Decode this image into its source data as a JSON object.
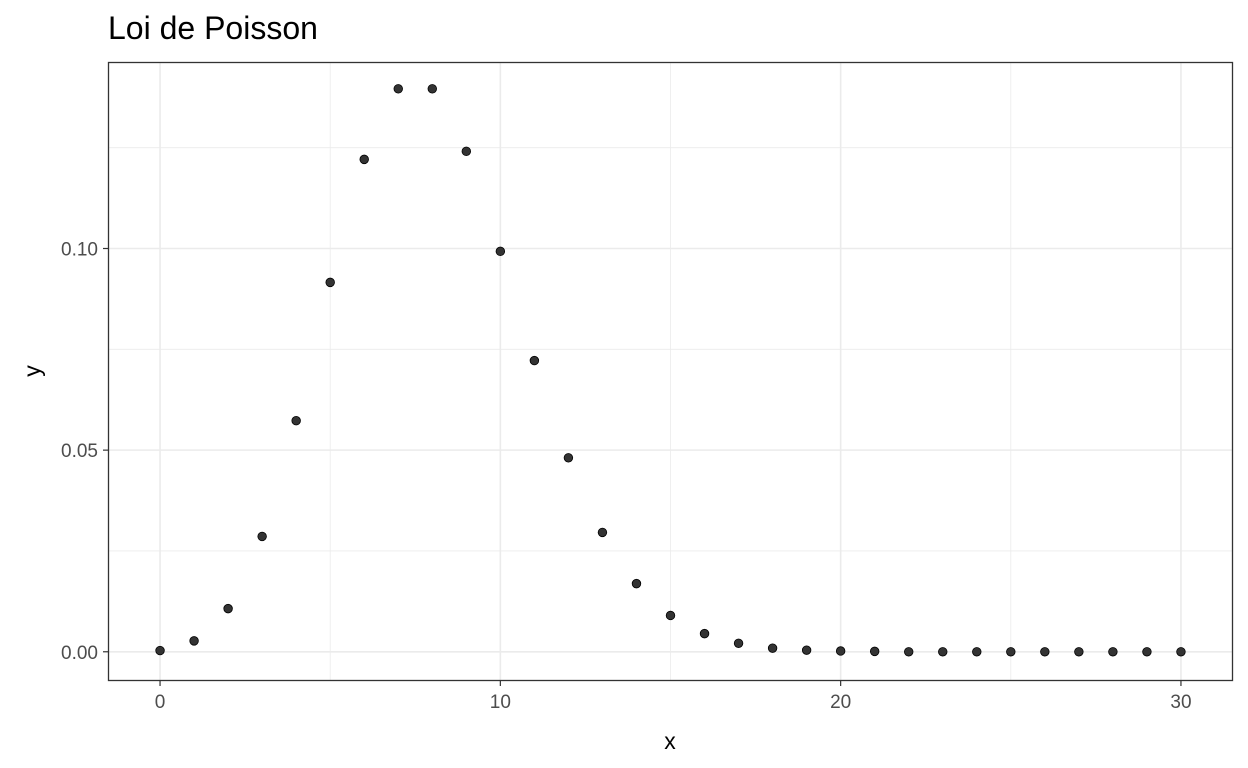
{
  "chart_data": {
    "type": "scatter",
    "title": "Loi de Poisson",
    "xlabel": "x",
    "ylabel": "y",
    "xlim": [
      -1.5,
      31.5
    ],
    "ylim": [
      -0.007,
      0.146
    ],
    "x_ticks": [
      0,
      10,
      20,
      30
    ],
    "x_tick_labels": [
      "0",
      "10",
      "20",
      "30"
    ],
    "x_minor_ticks": [
      5,
      15,
      25
    ],
    "y_ticks": [
      0.0,
      0.05,
      0.1
    ],
    "y_tick_labels": [
      "0.00",
      "0.05",
      "0.10"
    ],
    "y_minor_ticks": [
      0.025,
      0.075,
      0.125
    ],
    "grid": true,
    "legend": "none",
    "colors": {
      "point_fill": "#333333",
      "point_stroke": "#000000",
      "grid": "#ebebeb",
      "panel_border": "#333333"
    },
    "points": [
      {
        "x": 0,
        "y": 0.0003
      },
      {
        "x": 1,
        "y": 0.0027
      },
      {
        "x": 2,
        "y": 0.0107
      },
      {
        "x": 3,
        "y": 0.0286
      },
      {
        "x": 4,
        "y": 0.0573
      },
      {
        "x": 5,
        "y": 0.0916
      },
      {
        "x": 6,
        "y": 0.1221
      },
      {
        "x": 7,
        "y": 0.1396
      },
      {
        "x": 8,
        "y": 0.1396
      },
      {
        "x": 9,
        "y": 0.1241
      },
      {
        "x": 10,
        "y": 0.0993
      },
      {
        "x": 11,
        "y": 0.0722
      },
      {
        "x": 12,
        "y": 0.0481
      },
      {
        "x": 13,
        "y": 0.0296
      },
      {
        "x": 14,
        "y": 0.0169
      },
      {
        "x": 15,
        "y": 0.009
      },
      {
        "x": 16,
        "y": 0.0045
      },
      {
        "x": 17,
        "y": 0.0021
      },
      {
        "x": 18,
        "y": 0.0009
      },
      {
        "x": 19,
        "y": 0.0004
      },
      {
        "x": 20,
        "y": 0.0002
      },
      {
        "x": 21,
        "y": 0.0001
      },
      {
        "x": 22,
        "y": 0.0
      },
      {
        "x": 23,
        "y": 0.0
      },
      {
        "x": 24,
        "y": 0.0
      },
      {
        "x": 25,
        "y": 0.0
      },
      {
        "x": 26,
        "y": 0.0
      },
      {
        "x": 27,
        "y": 0.0
      },
      {
        "x": 28,
        "y": 0.0
      },
      {
        "x": 29,
        "y": 0.0
      },
      {
        "x": 30,
        "y": 0.0
      }
    ]
  }
}
